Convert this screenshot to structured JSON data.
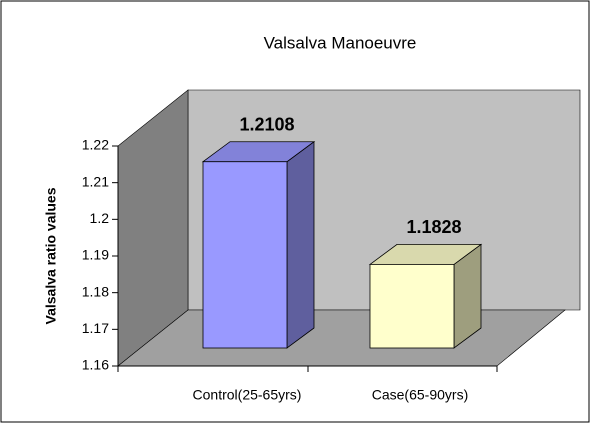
{
  "chart_data": {
    "type": "bar3d",
    "title": "Valsalva Manoeuvre",
    "y_label": "Valsalva ratio values",
    "categories": [
      "Control(25-65yrs)",
      "Case(65-90yrs)"
    ],
    "values": [
      1.2108,
      1.1828
    ],
    "colors": [
      "#9999ff",
      "#ffffcc"
    ],
    "ylim": [
      1.16,
      1.22
    ],
    "yticks": [
      1.16,
      1.17,
      1.18,
      1.19,
      1.2,
      1.21,
      1.22
    ],
    "grid": false
  }
}
